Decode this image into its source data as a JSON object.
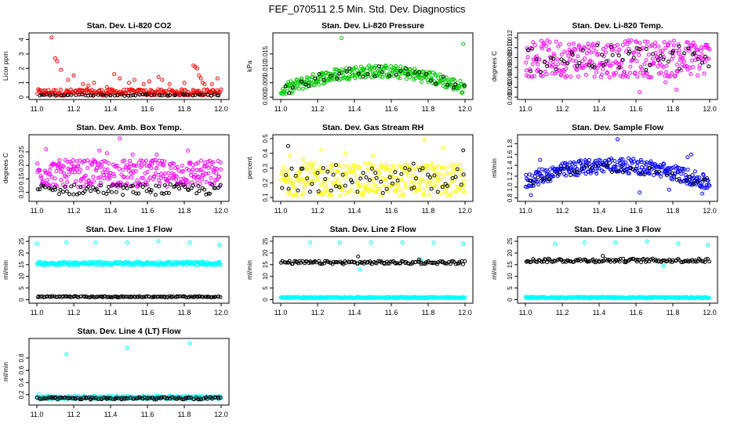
{
  "title": "FEF_070511  2.5 Min. Std. Dev. Diagnostics",
  "colors": {
    "red": "#ff0000",
    "green": "#00c800",
    "magenta": "#ff00ff",
    "yellow": "#ffff00",
    "blue": "#0000ff",
    "cyan": "#00ffff",
    "black": "#000000"
  },
  "chart_data": [
    {
      "type": "scatter",
      "title": "Stan. Dev. Li-820 CO2",
      "xlabel": "",
      "ylabel": "Licor ppm",
      "xlim": [
        11.0,
        12.0
      ],
      "ylim": [
        0,
        4.3
      ],
      "xticks": [
        "11.0",
        "11.2",
        "11.4",
        "11.6",
        "11.8",
        "12.0"
      ],
      "yticks": [
        "0",
        "1",
        "2",
        "3",
        "4"
      ],
      "series": [
        {
          "name": "primary",
          "color": "red",
          "band": [
            0.1,
            0.55
          ],
          "n": 220,
          "outliers": [
            [
              11.08,
              4.15
            ],
            [
              11.11,
              2.5
            ],
            [
              11.1,
              2.7
            ],
            [
              11.13,
              1.9
            ],
            [
              11.2,
              1.5
            ],
            [
              11.17,
              1.2
            ],
            [
              11.25,
              0.9
            ],
            [
              11.28,
              0.8
            ],
            [
              11.31,
              1.0
            ],
            [
              11.38,
              0.7
            ],
            [
              11.42,
              1.6
            ],
            [
              11.45,
              1.3
            ],
            [
              11.5,
              1.0
            ],
            [
              11.53,
              1.2
            ],
            [
              11.58,
              0.9
            ],
            [
              11.61,
              1.1
            ],
            [
              11.66,
              1.4
            ],
            [
              11.68,
              1.2
            ],
            [
              11.72,
              0.9
            ],
            [
              11.8,
              1.0
            ],
            [
              11.85,
              2.2
            ],
            [
              11.86,
              2.1
            ],
            [
              11.87,
              2.0
            ],
            [
              11.88,
              1.5
            ],
            [
              11.89,
              1.3
            ],
            [
              11.9,
              1.0
            ],
            [
              11.91,
              0.9
            ],
            [
              11.95,
              0.9
            ],
            [
              11.98,
              1.3
            ]
          ]
        },
        {
          "name": "secondary",
          "color": "black",
          "band": [
            0.1,
            0.2
          ],
          "n": 60,
          "outliers": []
        }
      ]
    },
    {
      "type": "scatter",
      "title": "Stan. Dev. Li-820 Pressure",
      "xlabel": "",
      "ylabel": "kPa",
      "xlim": [
        11.0,
        12.0
      ],
      "ylim": [
        0,
        0.0215
      ],
      "xticks": [
        "11.0",
        "11.2",
        "11.4",
        "11.6",
        "11.8",
        "12.0"
      ],
      "yticks": [
        "0.000",
        "0.005",
        "0.010",
        "0.015"
      ],
      "series": [
        {
          "name": "primary",
          "color": "green",
          "arch": [
            0.002,
            0.009,
            0.003
          ],
          "spread": 0.0022,
          "n": 300,
          "outliers": [
            [
              11.33,
              0.0205
            ],
            [
              11.99,
              0.0185
            ]
          ]
        },
        {
          "name": "secondary",
          "color": "black",
          "arch": [
            0.002,
            0.009,
            0.003
          ],
          "spread": 0.0018,
          "n": 35,
          "outliers": []
        }
      ]
    },
    {
      "type": "scatter",
      "title": "Stan. Dev. Li-820 Temp.",
      "xlabel": "",
      "ylabel": "degrees C",
      "xlim": [
        11.0,
        12.0
      ],
      "ylim": [
        0,
        0.0125
      ],
      "xticks": [
        "11.0",
        "11.2",
        "11.4",
        "11.6",
        "11.8",
        "12.0"
      ],
      "yticks": [
        "0.000",
        "0.002",
        "0.004",
        "0.006",
        "0.008",
        "0.010",
        "0.012"
      ],
      "series": [
        {
          "name": "primary",
          "color": "magenta",
          "band": [
            0.004,
            0.0115
          ],
          "n": 320,
          "outliers": [
            [
              11.62,
              0.001
            ],
            [
              11.76,
              0.003
            ],
            [
              11.82,
              0.0015
            ]
          ]
        },
        {
          "name": "secondary",
          "color": "black",
          "band": [
            0.005,
            0.0105
          ],
          "n": 55,
          "outliers": []
        }
      ]
    },
    {
      "type": "scatter",
      "title": "Stan. Dev. Amb. Box Temp.",
      "xlabel": "",
      "ylabel": "degrees C",
      "xlim": [
        11.0,
        12.0
      ],
      "ylim": [
        0.075,
        0.305
      ],
      "xticks": [
        "11.0",
        "11.2",
        "11.4",
        "11.6",
        "11.8",
        "12.0"
      ],
      "yticks": [
        "0.10",
        "0.15",
        "0.20",
        "0.25"
      ],
      "series": [
        {
          "name": "primary",
          "color": "magenta",
          "band": [
            0.12,
            0.22
          ],
          "n": 320,
          "outliers": [
            [
              11.05,
              0.26
            ],
            [
              11.34,
              0.255
            ],
            [
              11.45,
              0.3
            ],
            [
              11.38,
              0.245
            ],
            [
              11.82,
              0.255
            ],
            [
              11.52,
              0.24
            ],
            [
              11.65,
              0.24
            ]
          ]
        },
        {
          "name": "secondary",
          "color": "black",
          "band": [
            0.09,
            0.13
          ],
          "n": 90,
          "outliers": []
        }
      ]
    },
    {
      "type": "scatter",
      "title": "Stan. Dev. Gas Stream RH",
      "xlabel": "",
      "ylabel": "percent",
      "xlim": [
        11.0,
        12.0
      ],
      "ylim": [
        0.09,
        0.51
      ],
      "xticks": [
        "11.0",
        "11.2",
        "11.4",
        "11.6",
        "11.8",
        "12.0"
      ],
      "yticks": [
        "0.1",
        "0.2",
        "0.3",
        "0.4",
        "0.5"
      ],
      "series": [
        {
          "name": "primary",
          "color": "yellow",
          "band": [
            0.11,
            0.33
          ],
          "n": 300,
          "outliers": [
            [
              11.05,
              0.38
            ],
            [
              11.12,
              0.36
            ],
            [
              11.22,
              0.42
            ],
            [
              11.35,
              0.4
            ],
            [
              11.5,
              0.38
            ],
            [
              11.78,
              0.49
            ],
            [
              11.88,
              0.44
            ]
          ]
        },
        {
          "name": "secondary",
          "color": "black",
          "band": [
            0.13,
            0.3
          ],
          "n": 60,
          "outliers": [
            [
              11.04,
              0.45
            ],
            [
              11.99,
              0.42
            ],
            [
              11.72,
              0.33
            ],
            [
              11.3,
              0.32
            ]
          ]
        }
      ]
    },
    {
      "type": "scatter",
      "title": "Stan. Dev. Sample Flow",
      "xlabel": "",
      "ylabel": "ml/min",
      "xlim": [
        11.0,
        12.0
      ],
      "ylim": [
        0.78,
        1.92
      ],
      "xticks": [
        "11.0",
        "11.2",
        "11.4",
        "11.6",
        "11.8",
        "12.0"
      ],
      "yticks": [
        "0.8",
        "1.0",
        "1.2",
        "1.4",
        "1.6",
        "1.8"
      ],
      "series": [
        {
          "name": "primary",
          "color": "blue",
          "arch": [
            1.1,
            1.4,
            1.05
          ],
          "spread": 0.14,
          "n": 320,
          "outliers": [
            [
              11.5,
              1.88
            ],
            [
              11.88,
              1.55
            ],
            [
              11.9,
              1.6
            ],
            [
              11.62,
              0.9
            ],
            [
              11.78,
              0.95
            ],
            [
              11.96,
              0.88
            ],
            [
              11.03,
              0.85
            ],
            [
              11.08,
              1.5
            ]
          ]
        },
        {
          "name": "secondary",
          "color": "black",
          "arch": [
            1.1,
            1.35,
            1.05
          ],
          "spread": 0.1,
          "n": 40,
          "outliers": []
        }
      ]
    },
    {
      "type": "scatter",
      "title": "Stan. Dev. Line 1 Flow",
      "xlabel": "",
      "ylabel": "ml/min",
      "xlim": [
        11.0,
        12.0
      ],
      "ylim": [
        -0.5,
        26
      ],
      "xticks": [
        "11.0",
        "11.2",
        "11.4",
        "11.6",
        "11.8",
        "12.0"
      ],
      "yticks": [
        "0",
        "5",
        "10",
        "15",
        "20",
        "25"
      ],
      "series": [
        {
          "name": "primary",
          "color": "cyan",
          "band": [
            14.8,
            16.2
          ],
          "n": 300,
          "outliers": [
            [
              11.0,
              24
            ],
            [
              11.16,
              24.5
            ],
            [
              11.32,
              24.5
            ],
            [
              11.49,
              24.5
            ],
            [
              11.66,
              25
            ],
            [
              11.83,
              24.5
            ],
            [
              11.99,
              23.5
            ]
          ]
        },
        {
          "name": "secondary",
          "color": "black",
          "band": [
            1.0,
            1.5
          ],
          "n": 130,
          "outliers": []
        }
      ]
    },
    {
      "type": "scatter",
      "title": "Stan. Dev. Line 2 Flow",
      "xlabel": "",
      "ylabel": "ml/min",
      "xlim": [
        11.0,
        12.0
      ],
      "ylim": [
        -0.5,
        26
      ],
      "xticks": [
        "11.0",
        "11.2",
        "11.4",
        "11.6",
        "11.8",
        "12.0"
      ],
      "yticks": [
        "0",
        "5",
        "10",
        "15",
        "20",
        "25"
      ],
      "series": [
        {
          "name": "primary",
          "color": "cyan",
          "band": [
            0.6,
            1.2
          ],
          "n": 300,
          "outliers": [
            [
              11.16,
              24.5
            ],
            [
              11.32,
              24.5
            ],
            [
              11.49,
              24.5
            ],
            [
              11.66,
              24.5
            ],
            [
              11.83,
              24.5
            ],
            [
              11.99,
              24
            ],
            [
              11.76,
              17
            ],
            [
              11.43,
              13
            ]
          ]
        },
        {
          "name": "secondary",
          "color": "black",
          "band": [
            15.2,
            16.6
          ],
          "n": 130,
          "outliers": [
            [
              11.42,
              18.5
            ],
            [
              11.75,
              17.2
            ]
          ]
        }
      ]
    },
    {
      "type": "scatter",
      "title": "Stan. Dev. Line 3 Flow",
      "xlabel": "",
      "ylabel": "ml/min",
      "xlim": [
        11.0,
        12.0
      ],
      "ylim": [
        -0.5,
        26
      ],
      "xticks": [
        "11.0",
        "11.2",
        "11.4",
        "11.6",
        "11.8",
        "12.0"
      ],
      "yticks": [
        "0",
        "5",
        "10",
        "15",
        "20",
        "25"
      ],
      "series": [
        {
          "name": "primary",
          "color": "cyan",
          "band": [
            0.6,
            1.2
          ],
          "n": 300,
          "outliers": [
            [
              11.16,
              24
            ],
            [
              11.32,
              24.5
            ],
            [
              11.49,
              24.5
            ],
            [
              11.66,
              25
            ],
            [
              11.83,
              24
            ],
            [
              11.99,
              23.5
            ],
            [
              11.75,
              14.5
            ]
          ]
        },
        {
          "name": "secondary",
          "color": "black",
          "band": [
            16.0,
            17.6
          ],
          "n": 130,
          "outliers": [
            [
              11.42,
              18.8
            ]
          ]
        }
      ]
    },
    {
      "type": "scatter",
      "title": "Stan. Dev. Line 4 (LT) Flow",
      "xlabel": "",
      "ylabel": "ml/min",
      "xlim": [
        11.0,
        12.0
      ],
      "ylim": [
        0.07,
        1.08
      ],
      "xticks": [
        "11.0",
        "11.2",
        "11.4",
        "11.6",
        "11.8",
        "12.0"
      ],
      "yticks": [
        "0.2",
        "0.4",
        "0.6",
        "0.8"
      ],
      "series": [
        {
          "name": "primary",
          "color": "cyan",
          "band": [
            0.13,
            0.18
          ],
          "n": 300,
          "outliers": [
            [
              11.16,
              0.86
            ],
            [
              11.49,
              0.96
            ],
            [
              11.83,
              1.04
            ],
            [
              11.01,
              0.21
            ]
          ]
        },
        {
          "name": "secondary",
          "color": "black",
          "band": [
            0.12,
            0.16
          ],
          "n": 120,
          "outliers": []
        }
      ]
    }
  ]
}
